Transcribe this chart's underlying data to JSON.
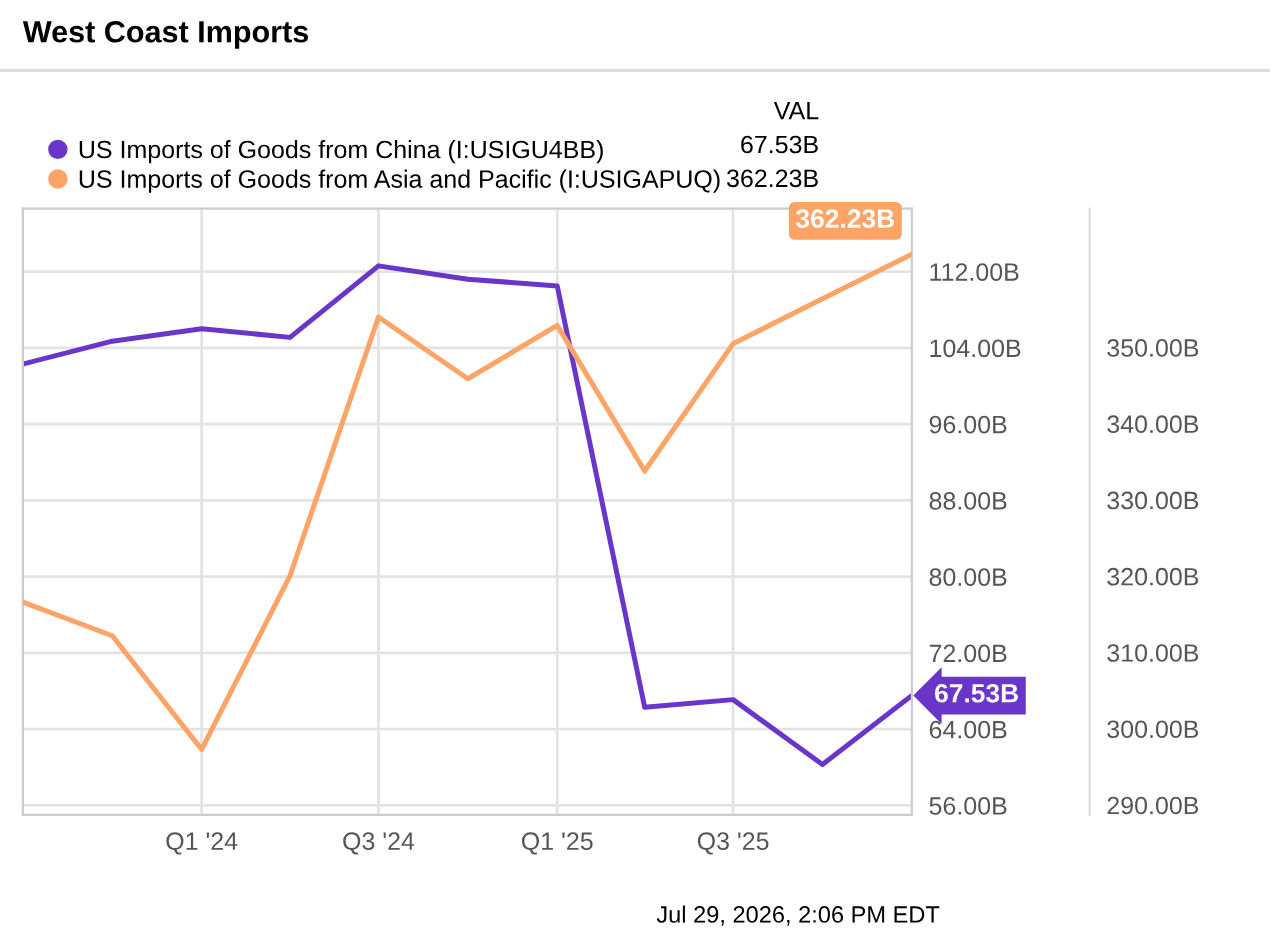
{
  "chart_data": {
    "type": "line",
    "title": "West Coast Imports",
    "x": [
      "2023-07",
      "2023-10",
      "2024-01",
      "2024-04",
      "2024-07",
      "2024-10",
      "2025-01",
      "2025-04",
      "2025-07",
      "2025-10",
      "2026-01"
    ],
    "series": [
      {
        "name": "US Imports of Goods from China (I:USIGU4BB)",
        "color": "#6a36c9",
        "values": [
          102.3,
          104.7,
          106.0,
          105.1,
          112.6,
          111.2,
          110.5,
          66.3,
          67.1,
          60.3,
          67.53
        ],
        "value_labels": [
          null,
          null,
          null,
          null,
          null,
          null,
          null,
          null,
          null,
          null,
          "67.53B"
        ]
      },
      {
        "name": "US Imports of Goods from Asia and Pacific (I:USIGAPUQ)",
        "color": "#ffa366",
        "axis": "y2",
        "values": [
          316.6,
          312.2,
          297.3,
          320.1,
          354.0,
          345.9,
          352.9,
          333.8,
          350.5,
          356.4,
          362.23
        ],
        "value_labels": [
          null,
          null,
          null,
          null,
          null,
          null,
          null,
          null,
          null,
          null,
          "362.23B"
        ]
      }
    ],
    "xlim": [
      "2023-07",
      "2026-01"
    ],
    "xticks": [
      {
        "value": "2024-01",
        "label": "Q1 '24"
      },
      {
        "value": "2024-07",
        "label": "Q3 '24"
      },
      {
        "value": "2025-01",
        "label": "Q1 '25"
      },
      {
        "value": "2025-07",
        "label": "Q3 '25"
      }
    ],
    "ylim": [
      55,
      118.6
    ],
    "yticks": [
      {
        "value": 56,
        "label": "56.00B"
      },
      {
        "value": 64,
        "label": "64.00B"
      },
      {
        "value": 72,
        "label": "72.00B"
      },
      {
        "value": 80,
        "label": "80.00B"
      },
      {
        "value": 88,
        "label": "88.00B"
      },
      {
        "value": 96,
        "label": "96.00B"
      },
      {
        "value": 104,
        "label": "104.00B"
      },
      {
        "value": 112,
        "label": "112.00B"
      }
    ],
    "y2lim": [
      288.7,
      368.2
    ],
    "y2ticks": [
      {
        "value": 290,
        "label": "290.00B"
      },
      {
        "value": 300,
        "label": "300.00B"
      },
      {
        "value": 310,
        "label": "310.00B"
      },
      {
        "value": 320,
        "label": "320.00B"
      },
      {
        "value": 330,
        "label": "330.00B"
      },
      {
        "value": 340,
        "label": "340.00B"
      },
      {
        "value": 350,
        "label": "350.00B"
      }
    ],
    "grid": true,
    "legend": "top left",
    "marker": "none",
    "line_style": "solid",
    "annotations": [
      "VAL",
      "67.53B",
      "362.23B",
      "Jul 29, 2026, 2:06 PM EDT"
    ]
  }
}
